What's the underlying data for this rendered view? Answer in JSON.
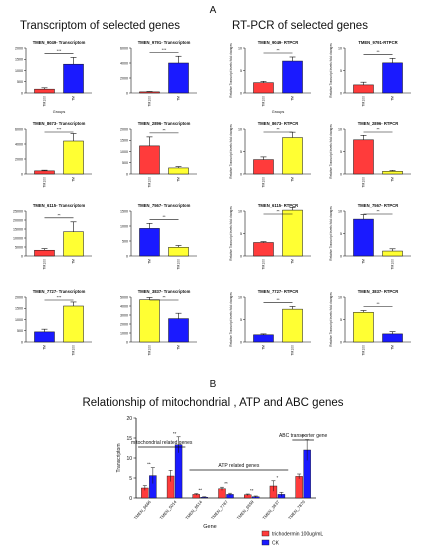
{
  "figure": {
    "panel_a": "A",
    "panel_b": "B",
    "heading_transcriptom": "Transcriptom of selected genes",
    "heading_rtpcr": "RT-PCR of selected genes",
    "heading_b": "Relationship of mitochondrial , ATP and ABC genes"
  },
  "colors": {
    "red": "#ff3b3b",
    "blue": "#1a1aff",
    "yellow": "#ffff33",
    "edge": "#111111"
  },
  "chart_data": [
    {
      "type": "bar",
      "title": "TMEN_9049- Transcriptom",
      "ylabel": "",
      "xlabel": "Groups",
      "ylim": [
        0,
        2000
      ],
      "yticks": [
        "0",
        "500",
        "1000",
        "1500",
        "2000"
      ],
      "categories": [
        "TM100",
        "TM"
      ],
      "values": [
        170,
        1280
      ],
      "errors": [
        60,
        300
      ],
      "colors": [
        "red",
        "blue"
      ],
      "sig": "***"
    },
    {
      "type": "bar",
      "title": "TMEN_9791- Transcriptom",
      "ylabel": "",
      "xlabel": "",
      "ylim": [
        0,
        6000
      ],
      "yticks": [
        "0",
        "2000",
        "4000",
        "6000"
      ],
      "categories": [
        "TM100",
        "TM"
      ],
      "values": [
        150,
        4000
      ],
      "errors": [
        50,
        900
      ],
      "colors": [
        "red",
        "blue"
      ],
      "sig": "***"
    },
    {
      "type": "bar",
      "title": "TMEN_9049- RTPCR",
      "ylabel": "Relative Transcript levels fold changes",
      "xlabel": "Groups",
      "ylim": [
        0,
        10
      ],
      "yticks": [
        "0",
        "5",
        "10"
      ],
      "categories": [
        "TM100",
        "TM"
      ],
      "values": [
        2.3,
        7.1
      ],
      "errors": [
        0.3,
        0.9
      ],
      "colors": [
        "red",
        "blue"
      ],
      "sig": "**"
    },
    {
      "type": "bar",
      "title": "TMEN_9791-RTPCR",
      "ylabel": "Relative Transcript levels fold changes",
      "xlabel": "",
      "ylim": [
        0,
        10
      ],
      "yticks": [
        "0",
        "5",
        "10"
      ],
      "categories": [
        "TM100",
        "TM"
      ],
      "values": [
        1.8,
        6.7
      ],
      "errors": [
        0.6,
        1.0
      ],
      "colors": [
        "red",
        "blue"
      ],
      "sig": "**"
    },
    {
      "type": "bar",
      "title": "TMEN_8673- Transcriptom",
      "ylabel": "",
      "xlabel": "",
      "ylim": [
        0,
        6000
      ],
      "yticks": [
        "0",
        "2000",
        "4000",
        "6000"
      ],
      "categories": [
        "TM100",
        "TM"
      ],
      "values": [
        420,
        4400
      ],
      "errors": [
        90,
        1000
      ],
      "colors": [
        "red",
        "yellow"
      ],
      "sig": "***"
    },
    {
      "type": "bar",
      "title": "TMEN_2896- Transcriptom",
      "ylabel": "",
      "xlabel": "",
      "ylim": [
        0,
        2000
      ],
      "yticks": [
        "0",
        "500",
        "1000",
        "1500",
        "2000"
      ],
      "categories": [
        "TM100",
        "TM"
      ],
      "values": [
        1250,
        270
      ],
      "errors": [
        400,
        60
      ],
      "colors": [
        "red",
        "yellow"
      ],
      "sig": "**"
    },
    {
      "type": "bar",
      "title": "TMEN_8673- RTPCR",
      "ylabel": "Relative Transcript levels fold changes",
      "xlabel": "",
      "ylim": [
        0,
        10
      ],
      "yticks": [
        "0",
        "5",
        "10"
      ],
      "categories": [
        "TM100",
        "TM"
      ],
      "values": [
        3.2,
        8.1
      ],
      "errors": [
        0.6,
        1.2
      ],
      "colors": [
        "red",
        "yellow"
      ],
      "sig": "**"
    },
    {
      "type": "bar",
      "title": "TMEN_2896- RTPCR",
      "ylabel": "Relative Transcript levels fold changes",
      "xlabel": "",
      "ylim": [
        0,
        10
      ],
      "yticks": [
        "0",
        "5",
        "10"
      ],
      "categories": [
        "TM100",
        "TM"
      ],
      "values": [
        7.6,
        0.6
      ],
      "errors": [
        1.0,
        0.2
      ],
      "colors": [
        "red",
        "yellow"
      ],
      "sig": "**"
    },
    {
      "type": "bar",
      "title": "TMEN_6115- Transcriptom",
      "ylabel": "",
      "xlabel": "",
      "ylim": [
        0,
        25000
      ],
      "yticks": [
        "0",
        "5000",
        "10000",
        "15000",
        "20000",
        "25000"
      ],
      "categories": [
        "TM100",
        "TM"
      ],
      "values": [
        3200,
        13500
      ],
      "errors": [
        900,
        5500
      ],
      "colors": [
        "red",
        "yellow"
      ],
      "sig": "**"
    },
    {
      "type": "bar",
      "title": "TMEN_7567- Transcriptom",
      "ylabel": "",
      "xlabel": "",
      "ylim": [
        0,
        1500
      ],
      "yticks": [
        "0",
        "500",
        "1000",
        "1500"
      ],
      "categories": [
        "TM",
        "TM100"
      ],
      "values": [
        920,
        290
      ],
      "errors": [
        170,
        60
      ],
      "colors": [
        "blue",
        "yellow"
      ],
      "sig": "**"
    },
    {
      "type": "bar",
      "title": "TMEN_6115- RTPCR",
      "ylabel": "Relative Transcript levels fold changes",
      "xlabel": "",
      "ylim": [
        0,
        10
      ],
      "yticks": [
        "0",
        "5",
        "10"
      ],
      "categories": [
        "TM100",
        "TM"
      ],
      "values": [
        3.0,
        10.2
      ],
      "errors": [
        0.2,
        0.6
      ],
      "colors": [
        "red",
        "yellow"
      ],
      "sig": "**"
    },
    {
      "type": "bar",
      "title": "TMEN_7567- RTPCR",
      "ylabel": "Relative Transcript levels fold changes",
      "xlabel": "",
      "ylim": [
        0,
        10
      ],
      "yticks": [
        "0",
        "5",
        "10"
      ],
      "categories": [
        "TM",
        "TM100"
      ],
      "values": [
        8.2,
        1.1
      ],
      "errors": [
        1.0,
        0.5
      ],
      "colors": [
        "blue",
        "yellow"
      ],
      "sig": "**"
    },
    {
      "type": "bar",
      "title": "TMEN_7727- Transcriptom",
      "ylabel": "",
      "xlabel": "",
      "ylim": [
        0,
        2000
      ],
      "yticks": [
        "0",
        "500",
        "1000",
        "1500",
        "2000"
      ],
      "categories": [
        "TM",
        "TM100"
      ],
      "values": [
        450,
        1600
      ],
      "errors": [
        120,
        180
      ],
      "colors": [
        "blue",
        "yellow"
      ],
      "sig": "***"
    },
    {
      "type": "bar",
      "title": "TMEN_3837- Transcriptom",
      "ylabel": "",
      "xlabel": "",
      "ylim": [
        0,
        5000
      ],
      "yticks": [
        "0",
        "1000",
        "2000",
        "3000",
        "4000",
        "5000"
      ],
      "categories": [
        "TM100",
        "TM"
      ],
      "values": [
        4700,
        2600
      ],
      "errors": [
        250,
        600
      ],
      "colors": [
        "yellow",
        "blue"
      ],
      "sig": "**"
    },
    {
      "type": "bar",
      "title": "TMEN_7727- RTPCR",
      "ylabel": "Relative Transcript levels fold changes",
      "xlabel": "",
      "ylim": [
        0,
        10
      ],
      "yticks": [
        "0",
        "5",
        "10"
      ],
      "categories": [
        "TM",
        "TM100"
      ],
      "values": [
        1.6,
        7.3
      ],
      "errors": [
        0.2,
        0.6
      ],
      "colors": [
        "blue",
        "yellow"
      ],
      "sig": "**"
    },
    {
      "type": "bar",
      "title": "TMEN_3837- RTPCR",
      "ylabel": "Relative Transcript levels fold changes",
      "xlabel": "",
      "ylim": [
        0,
        10
      ],
      "yticks": [
        "0",
        "5",
        "10"
      ],
      "categories": [
        "TM100",
        "TM"
      ],
      "values": [
        6.6,
        1.8
      ],
      "errors": [
        0.4,
        0.5
      ],
      "colors": [
        "yellow",
        "blue"
      ],
      "sig": "**"
    },
    {
      "type": "bar",
      "title": "Relationship of mitochondrial , ATP and ABC genes",
      "xlabel": "Gene",
      "ylabel": "Transcriptom",
      "ylim": [
        0,
        20
      ],
      "yticks": [
        "0",
        "5",
        "10",
        "15",
        "20"
      ],
      "categories": [
        "TMEN_6666",
        "TMEN_5014",
        "TMEN_8514",
        "TMEN_7787",
        "TMEN_6559",
        "TMEN_3837",
        "TMEN_7870"
      ],
      "series": [
        {
          "name": "trichodermin 100ug/mL",
          "color": "red",
          "values": [
            2.5,
            5.5,
            0.9,
            2.3,
            0.8,
            3.0,
            5.4
          ],
          "errors": [
            0.6,
            1.4,
            0.2,
            0.4,
            0.2,
            1.3,
            0.6
          ]
        },
        {
          "name": "CK",
          "color": "blue",
          "values": [
            5.6,
            13.3,
            0.2,
            0.9,
            0.3,
            0.9,
            12.0
          ],
          "errors": [
            2.0,
            2.0,
            0.1,
            0.3,
            0.2,
            0.5,
            2.6
          ]
        }
      ],
      "sig": [
        "**",
        "**",
        "**",
        "**",
        "**",
        "*",
        "**"
      ],
      "group_labels": [
        {
          "text": "mitochondrial related genes",
          "from": 0,
          "to": 1
        },
        {
          "text": "ATP related genes",
          "from": 2,
          "to": 5
        },
        {
          "text": "ABC transporter gene",
          "from": 6,
          "to": 6
        }
      ]
    }
  ]
}
